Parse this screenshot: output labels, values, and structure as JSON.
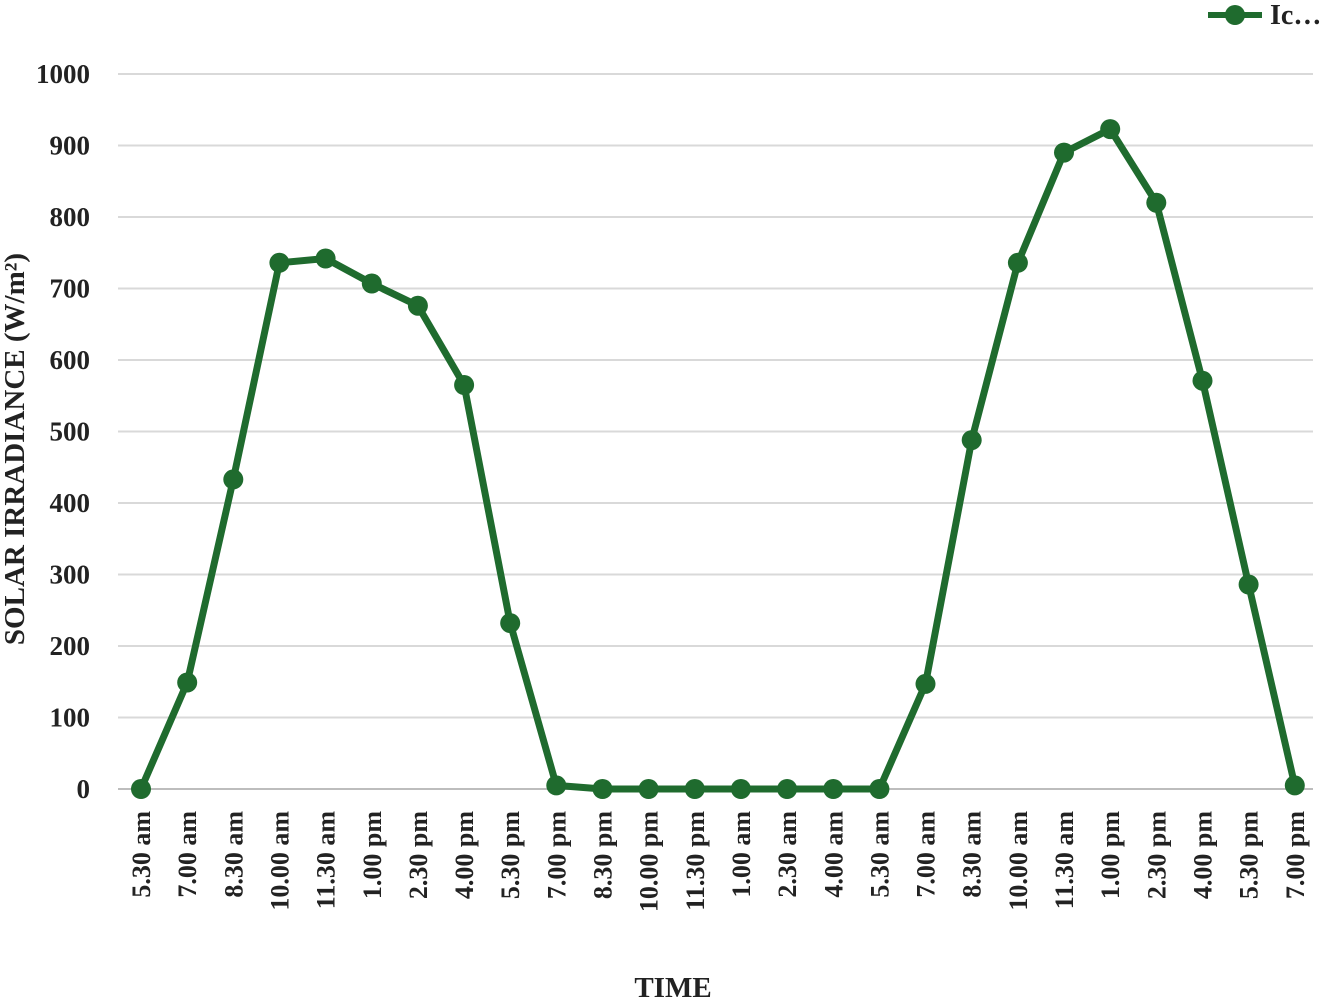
{
  "chart_data": {
    "type": "line",
    "xlabel": "TIME",
    "ylabel": "SOLAR IRRADIANCE  (W/m²)",
    "ylim": [
      0,
      1000
    ],
    "yticks": [
      0,
      100,
      200,
      300,
      400,
      500,
      600,
      700,
      800,
      900,
      1000
    ],
    "grid": true,
    "legend_position": "top-right",
    "categories": [
      "5.30 am",
      "7.00 am",
      "8.30 am",
      "10.00 am",
      "11.30 am",
      "1.00 pm",
      "2.30 pm",
      "4.00 pm",
      "5.30 pm",
      "7.00 pm",
      "8.30 pm",
      "10.00 pm",
      "11.30 pm",
      "1.00 am",
      "2.30 am",
      "4.00 am",
      "5.30 am",
      "7.00 am",
      "8.30 am",
      "10.00 am",
      "11.30 am",
      "1.00 pm",
      "2.30 pm",
      "4.00 pm",
      "5.30 pm",
      "7.00 pm"
    ],
    "series": [
      {
        "name": "Ic…",
        "color": "#1f6b2e",
        "values": [
          0,
          149,
          433,
          736,
          742,
          707,
          676,
          565,
          232,
          5,
          0,
          0,
          0,
          0,
          0,
          0,
          0,
          147,
          488,
          736,
          890,
          923,
          820,
          571,
          286,
          5
        ]
      }
    ]
  }
}
